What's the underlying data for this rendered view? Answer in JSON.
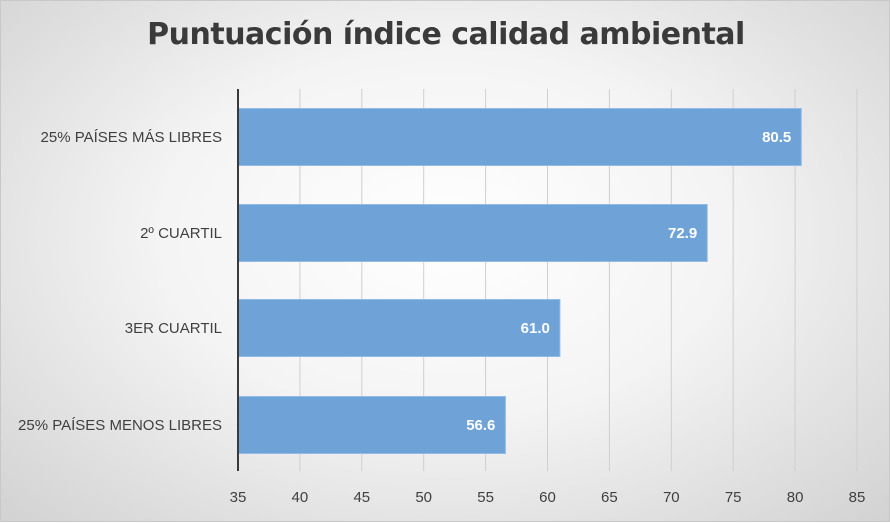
{
  "chart_data": {
    "type": "bar",
    "orientation": "horizontal",
    "title": "Puntuación índice calidad ambiental",
    "categories": [
      "25% PAÍSES MÁS LIBRES",
      "2º CUARTIL",
      "3ER CUARTIL",
      "25% PAÍSES MENOS LIBRES"
    ],
    "values": [
      80.5,
      72.9,
      61.0,
      56.6
    ],
    "value_labels": [
      "80.5",
      "72.9",
      "61.0",
      "56.6"
    ],
    "xlim": [
      35,
      85
    ],
    "xticks": [
      35,
      40,
      45,
      50,
      55,
      60,
      65,
      70,
      75,
      80,
      85
    ],
    "grid": true,
    "legend": "none",
    "bar_color": "#6fa3d8",
    "bar_edge_color": "#8fbbe6"
  }
}
